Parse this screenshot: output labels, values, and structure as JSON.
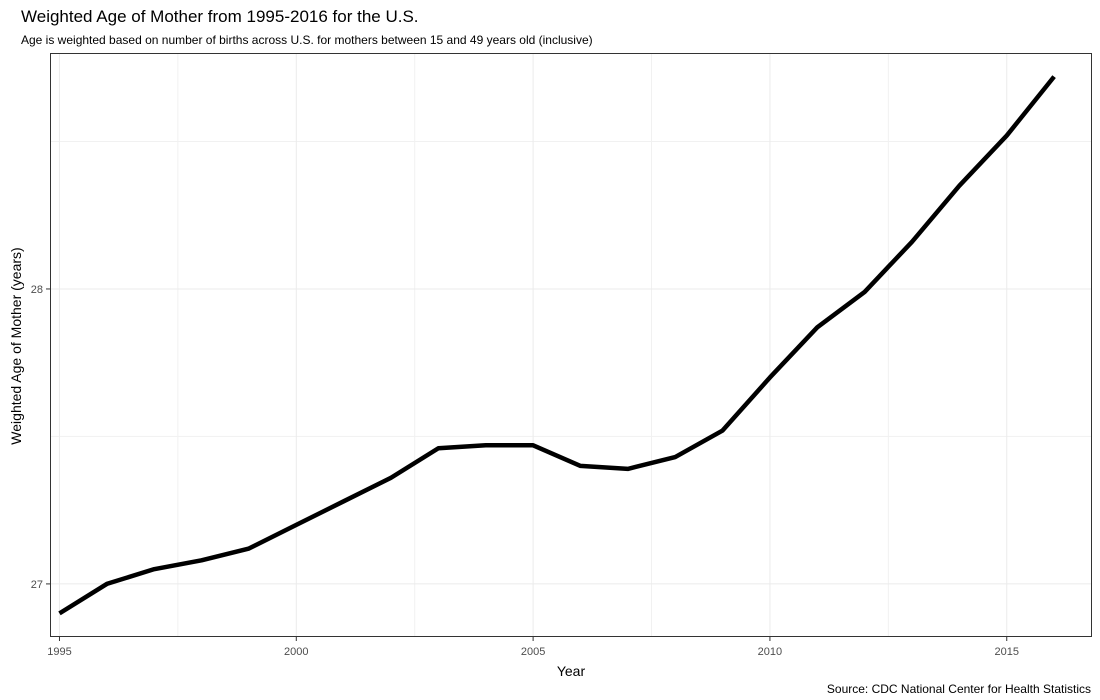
{
  "chart_data": {
    "type": "line",
    "title": "Weighted Age of Mother from 1995-2016 for the U.S.",
    "subtitle": "Age is weighted based on number of births across U.S. for mothers between 15 and 49 years old (inclusive)",
    "caption": "Source: CDC National Center for Health Statistics",
    "xlabel": "Year",
    "ylabel": "Weighted Age of Mother (years)",
    "xlim": [
      1994.8,
      2016.8
    ],
    "ylim": [
      26.82,
      28.8
    ],
    "x_ticks": [
      1995,
      2000,
      2005,
      2010,
      2015
    ],
    "y_ticks": [
      27,
      28
    ],
    "grid": true,
    "series": [
      {
        "color": "#000000",
        "x": [
          1995,
          1996,
          1997,
          1998,
          1999,
          2000,
          2001,
          2002,
          2003,
          2004,
          2005,
          2006,
          2007,
          2008,
          2009,
          2010,
          2011,
          2012,
          2013,
          2014,
          2015,
          2016
        ],
        "y": [
          26.9,
          27.0,
          27.05,
          27.08,
          27.12,
          27.2,
          27.28,
          27.36,
          27.46,
          27.47,
          27.47,
          27.4,
          27.39,
          27.43,
          27.52,
          27.7,
          27.87,
          27.99,
          28.16,
          28.35,
          28.52,
          28.72
        ]
      }
    ]
  }
}
